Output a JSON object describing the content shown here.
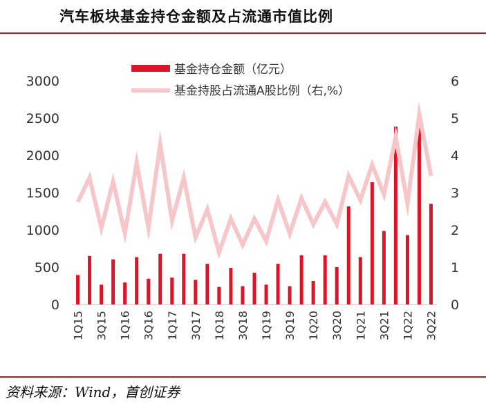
{
  "header": {
    "title": "汽车板块基金持仓金额及占流通市值比例"
  },
  "footer": {
    "source": "资料来源：Wind，首创证券"
  },
  "colors": {
    "accent": "#c0141e",
    "bar": "#dc1428",
    "line": "#f7c6c9"
  },
  "chart_data": {
    "type": "bar",
    "categories": [
      "1Q15",
      "2Q15",
      "3Q15",
      "4Q15",
      "1Q16",
      "2Q16",
      "3Q16",
      "4Q16",
      "1Q17",
      "2Q17",
      "3Q17",
      "4Q17",
      "1Q18",
      "2Q18",
      "3Q18",
      "4Q18",
      "1Q19",
      "2Q19",
      "3Q19",
      "4Q19",
      "1Q20",
      "2Q20",
      "3Q20",
      "4Q20",
      "1Q21",
      "2Q21",
      "3Q21",
      "4Q21",
      "1Q22",
      "2Q22",
      "3Q22"
    ],
    "x_tick_labels": [
      "1Q15",
      "3Q15",
      "1Q16",
      "3Q16",
      "1Q17",
      "3Q17",
      "1Q18",
      "3Q18",
      "1Q19",
      "3Q19",
      "1Q20",
      "3Q20",
      "1Q21",
      "3Q21",
      "1Q22",
      "3Q22"
    ],
    "series": [
      {
        "name": "基金持仓金额（亿元）",
        "type": "bar",
        "axis": "left",
        "values": [
          395,
          650,
          265,
          605,
          295,
          635,
          345,
          680,
          360,
          680,
          330,
          545,
          235,
          490,
          245,
          425,
          265,
          545,
          245,
          660,
          315,
          660,
          500,
          1315,
          635,
          1640,
          985,
          2385,
          930,
          2580,
          1350
        ]
      },
      {
        "name": "基金持股占流通A股比例（右,%）",
        "type": "line",
        "axis": "right",
        "values": [
          2.75,
          3.4,
          2.05,
          3.3,
          1.9,
          3.8,
          2.05,
          4.3,
          2.25,
          3.4,
          1.8,
          2.55,
          1.4,
          2.3,
          1.6,
          2.3,
          1.7,
          2.8,
          1.9,
          2.85,
          2.15,
          2.75,
          2.15,
          3.45,
          2.8,
          3.75,
          2.95,
          4.5,
          2.7,
          5.1,
          3.45
        ]
      }
    ],
    "ylim_left": [
      0,
      3000
    ],
    "yticks_left": [
      "0",
      "500",
      "1000",
      "1500",
      "2000",
      "2500",
      "3000"
    ],
    "ylim_right": [
      0,
      6
    ],
    "yticks_right": [
      "0",
      "1",
      "2",
      "3",
      "4",
      "5",
      "6"
    ],
    "grid": false,
    "legend": "top"
  }
}
